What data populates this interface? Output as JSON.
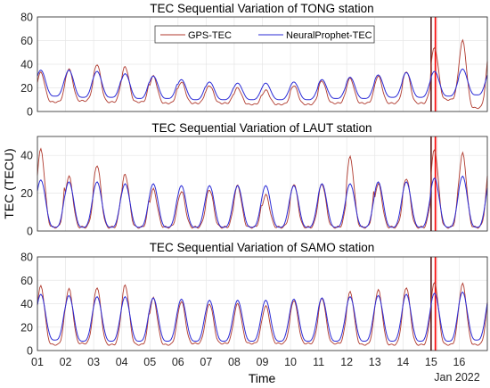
{
  "figure": {
    "ylabel": "TEC (TECU)",
    "xlabel": "Time",
    "date_label": "Jan 2022",
    "x_ticks": [
      "01",
      "02",
      "03",
      "04",
      "05",
      "06",
      "07",
      "08",
      "09",
      "10",
      "11",
      "12",
      "13",
      "14",
      "15",
      "16"
    ],
    "legend": [
      "GPS-TEC",
      "NeuralProphet-TEC"
    ]
  },
  "colors": {
    "gps": "#b03a2e",
    "neural": "#2b2bd6",
    "event_band": "#f4c7c7",
    "event_line_dark": "#5a1a1a",
    "event_line_red": "#ff0000"
  },
  "chart_data": [
    {
      "type": "line",
      "title": "TEC Sequential Variation of TONG station",
      "x_unit": "day of Jan 2022",
      "xlim": [
        1,
        17
      ],
      "ylim": [
        0,
        80
      ],
      "yticks": [
        0,
        20,
        40,
        60,
        80
      ],
      "grid": true,
      "legend_position": "top-center",
      "event_markers": [
        15.0,
        15.15
      ],
      "event_band": [
        15.12,
        15.22
      ],
      "series": [
        {
          "name": "GPS-TEC",
          "kind": "gps",
          "x": [
            1,
            2,
            3,
            4,
            5,
            6,
            7,
            8,
            9,
            10,
            11,
            12,
            13,
            14,
            15,
            16
          ],
          "peaks": [
            33,
            36,
            40,
            38,
            30,
            25,
            22,
            20,
            18,
            22,
            26,
            28,
            30,
            34,
            54,
            60
          ],
          "troughs": [
            8,
            9,
            8,
            8,
            7,
            7,
            7,
            6,
            6,
            6,
            7,
            7,
            7,
            7,
            10,
            3
          ]
        },
        {
          "name": "NeuralProphet-TEC",
          "kind": "neural",
          "x": [
            1,
            2,
            3,
            4,
            5,
            6,
            7,
            8,
            9,
            10,
            11,
            12,
            13,
            14,
            15,
            16
          ],
          "peaks": [
            35,
            35,
            34,
            32,
            30,
            27,
            25,
            24,
            24,
            25,
            27,
            29,
            31,
            33,
            34,
            36
          ],
          "troughs": [
            13,
            12,
            12,
            11,
            11,
            10,
            10,
            10,
            10,
            10,
            11,
            11,
            12,
            12,
            13,
            14
          ]
        }
      ]
    },
    {
      "type": "line",
      "title": "TEC Sequential Variation of LAUT station",
      "x_unit": "day of Jan 2022",
      "xlim": [
        1,
        17
      ],
      "ylim": [
        0,
        50
      ],
      "yticks": [
        0,
        20,
        40
      ],
      "grid": true,
      "event_markers": [
        15.0,
        15.15
      ],
      "event_band": [
        15.12,
        15.22
      ],
      "series": [
        {
          "name": "GPS-TEC",
          "kind": "gps",
          "x": [
            1,
            2,
            3,
            4,
            5,
            6,
            7,
            8,
            9,
            10,
            11,
            12,
            13,
            14,
            15,
            16
          ],
          "peaks": [
            43,
            29,
            35,
            30,
            22,
            21,
            22,
            24,
            19,
            25,
            25,
            39,
            25,
            28,
            43,
            41
          ],
          "troughs": [
            2,
            2,
            2,
            2,
            2,
            2,
            2,
            2,
            2,
            2,
            2,
            2,
            2,
            2,
            2,
            2
          ]
        },
        {
          "name": "NeuralProphet-TEC",
          "kind": "neural",
          "x": [
            1,
            2,
            3,
            4,
            5,
            6,
            7,
            8,
            9,
            10,
            11,
            12,
            13,
            14,
            15,
            16
          ],
          "peaks": [
            27,
            26,
            26,
            25,
            25,
            24,
            24,
            24,
            24,
            24,
            25,
            25,
            26,
            26,
            28,
            29
          ],
          "troughs": [
            2,
            2,
            2,
            2,
            2,
            2,
            2,
            2,
            2,
            2,
            2,
            2,
            2,
            2,
            2,
            2
          ]
        }
      ]
    },
    {
      "type": "line",
      "title": "TEC Sequential Variation of SAMO station",
      "x_unit": "day of Jan 2022",
      "xlim": [
        1,
        17
      ],
      "ylim": [
        0,
        80
      ],
      "yticks": [
        0,
        20,
        40,
        60,
        80
      ],
      "grid": true,
      "event_markers": [
        15.0,
        15.15
      ],
      "event_band": [
        15.12,
        15.22
      ],
      "series": [
        {
          "name": "GPS-TEC",
          "kind": "gps",
          "x": [
            1,
            2,
            3,
            4,
            5,
            6,
            7,
            8,
            9,
            10,
            11,
            12,
            13,
            14,
            15,
            16
          ],
          "peaks": [
            55,
            53,
            54,
            56,
            45,
            42,
            40,
            40,
            38,
            43,
            45,
            50,
            52,
            54,
            58,
            57
          ],
          "troughs": [
            5,
            6,
            5,
            5,
            5,
            6,
            6,
            6,
            6,
            6,
            6,
            5,
            5,
            5,
            5,
            5
          ]
        },
        {
          "name": "NeuralProphet-TEC",
          "kind": "neural",
          "x": [
            1,
            2,
            3,
            4,
            5,
            6,
            7,
            8,
            9,
            10,
            11,
            12,
            13,
            14,
            15,
            16
          ],
          "peaks": [
            48,
            47,
            46,
            46,
            45,
            44,
            43,
            43,
            43,
            44,
            45,
            46,
            47,
            48,
            49,
            50
          ],
          "troughs": [
            9,
            8,
            8,
            8,
            8,
            8,
            8,
            8,
            8,
            8,
            8,
            8,
            8,
            8,
            8,
            9
          ]
        }
      ]
    }
  ]
}
